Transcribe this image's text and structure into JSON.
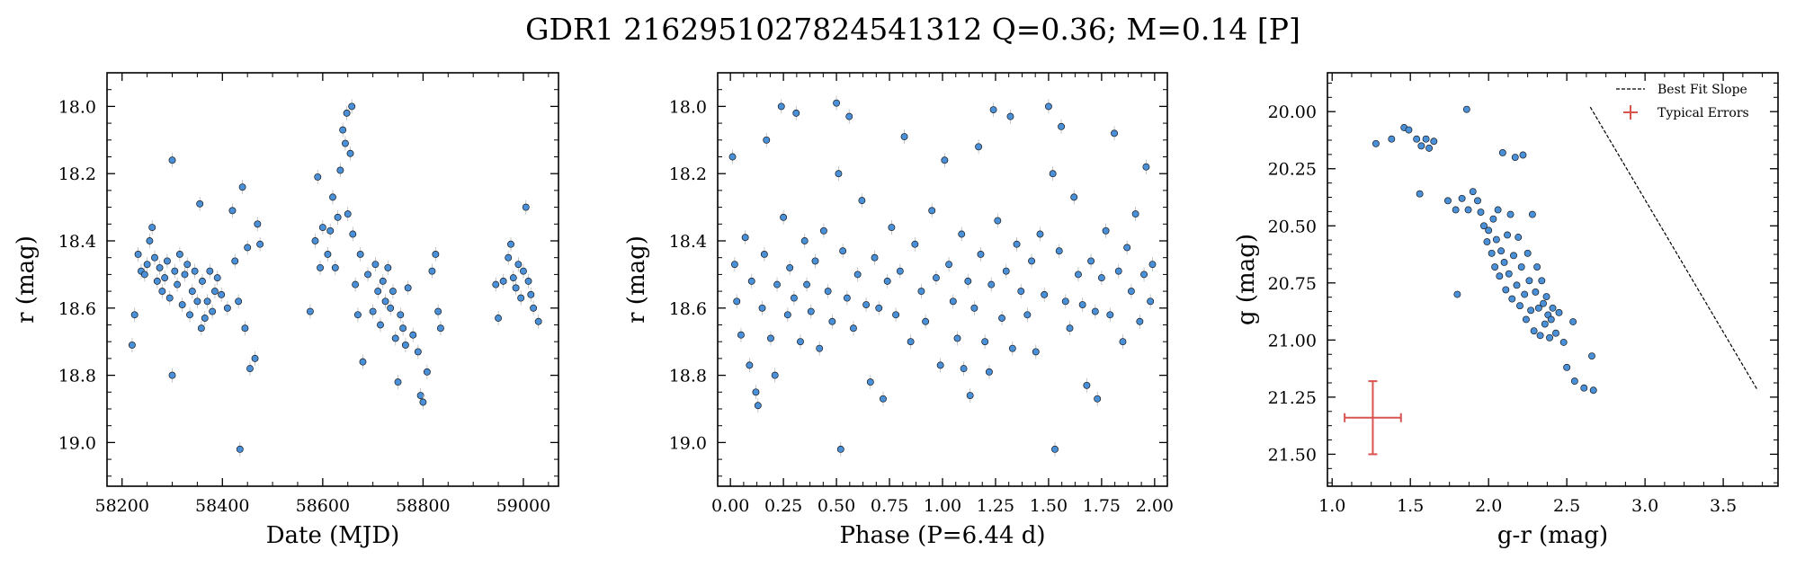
{
  "figure": {
    "title": "GDR1 2162951027824541312  Q=0.36; M=0.14 [P]"
  },
  "colors": {
    "point_fill": "#4a90d9",
    "point_edge": "#1a1a1a",
    "errorbar": "#b8b8b8",
    "typical_error": "#d9534f",
    "slope_line": "#000000"
  },
  "chart_data": [
    {
      "type": "scatter",
      "xlabel": "Date (MJD)",
      "ylabel": "r (mag)",
      "xlim": [
        58170,
        59070
      ],
      "ylim": [
        19.13,
        17.9
      ],
      "y_inverted": true,
      "xticks": [
        58200,
        58400,
        58600,
        58800,
        59000
      ],
      "xtick_labels": [
        "58200",
        "58400",
        "58600",
        "58800",
        "59000"
      ],
      "yticks": [
        18.0,
        18.2,
        18.4,
        18.6,
        18.8,
        19.0
      ],
      "ytick_labels": [
        "18.0",
        "18.2",
        "18.4",
        "18.6",
        "18.8",
        "19.0"
      ],
      "points": [
        [
          58220,
          18.71
        ],
        [
          58225,
          18.62
        ],
        [
          58232,
          18.44
        ],
        [
          58238,
          18.49
        ],
        [
          58245,
          18.5
        ],
        [
          58250,
          18.47
        ],
        [
          58255,
          18.4
        ],
        [
          58260,
          18.36
        ],
        [
          58265,
          18.45
        ],
        [
          58270,
          18.52
        ],
        [
          58275,
          18.48
        ],
        [
          58280,
          18.55
        ],
        [
          58285,
          18.51
        ],
        [
          58290,
          18.46
        ],
        [
          58295,
          18.57
        ],
        [
          58300,
          18.16
        ],
        [
          58300,
          18.8
        ],
        [
          58305,
          18.49
        ],
        [
          58310,
          18.53
        ],
        [
          58315,
          18.44
        ],
        [
          58320,
          18.59
        ],
        [
          58325,
          18.5
        ],
        [
          58330,
          18.47
        ],
        [
          58335,
          18.62
        ],
        [
          58340,
          18.55
        ],
        [
          58345,
          18.49
        ],
        [
          58350,
          18.58
        ],
        [
          58355,
          18.29
        ],
        [
          58358,
          18.66
        ],
        [
          58360,
          18.52
        ],
        [
          58365,
          18.63
        ],
        [
          58370,
          18.58
        ],
        [
          58375,
          18.49
        ],
        [
          58380,
          18.61
        ],
        [
          58385,
          18.55
        ],
        [
          58390,
          18.51
        ],
        [
          58398,
          18.56
        ],
        [
          58410,
          18.6
        ],
        [
          58420,
          18.31
        ],
        [
          58425,
          18.46
        ],
        [
          58432,
          18.58
        ],
        [
          58435,
          19.02
        ],
        [
          58440,
          18.24
        ],
        [
          58445,
          18.66
        ],
        [
          58450,
          18.42
        ],
        [
          58455,
          18.78
        ],
        [
          58465,
          18.75
        ],
        [
          58470,
          18.35
        ],
        [
          58475,
          18.41
        ],
        [
          58575,
          18.61
        ],
        [
          58585,
          18.4
        ],
        [
          58590,
          18.21
        ],
        [
          58595,
          18.48
        ],
        [
          58600,
          18.36
        ],
        [
          58610,
          18.44
        ],
        [
          58615,
          18.37
        ],
        [
          58620,
          18.27
        ],
        [
          58625,
          18.48
        ],
        [
          58630,
          18.33
        ],
        [
          58635,
          18.19
        ],
        [
          58640,
          18.07
        ],
        [
          58645,
          18.11
        ],
        [
          58648,
          18.02
        ],
        [
          58650,
          18.32
        ],
        [
          58655,
          18.14
        ],
        [
          58658,
          18.0
        ],
        [
          58660,
          18.38
        ],
        [
          58665,
          18.53
        ],
        [
          58670,
          18.62
        ],
        [
          58675,
          18.44
        ],
        [
          58680,
          18.76
        ],
        [
          58690,
          18.5
        ],
        [
          58700,
          18.61
        ],
        [
          58705,
          18.47
        ],
        [
          58710,
          18.55
        ],
        [
          58715,
          18.65
        ],
        [
          58720,
          18.52
        ],
        [
          58725,
          18.58
        ],
        [
          58730,
          18.48
        ],
        [
          58735,
          18.6
        ],
        [
          58740,
          18.55
        ],
        [
          58745,
          18.69
        ],
        [
          58750,
          18.82
        ],
        [
          58755,
          18.62
        ],
        [
          58760,
          18.66
        ],
        [
          58765,
          18.71
        ],
        [
          58770,
          18.54
        ],
        [
          58780,
          18.68
        ],
        [
          58790,
          18.73
        ],
        [
          58795,
          18.86
        ],
        [
          58800,
          18.88
        ],
        [
          58808,
          18.79
        ],
        [
          58818,
          18.49
        ],
        [
          58825,
          18.44
        ],
        [
          58830,
          18.61
        ],
        [
          58835,
          18.66
        ],
        [
          58945,
          18.53
        ],
        [
          58950,
          18.63
        ],
        [
          58960,
          18.52
        ],
        [
          58970,
          18.45
        ],
        [
          58975,
          18.41
        ],
        [
          58980,
          18.51
        ],
        [
          58985,
          18.54
        ],
        [
          58990,
          18.47
        ],
        [
          58995,
          18.57
        ],
        [
          59000,
          18.49
        ],
        [
          59005,
          18.3
        ],
        [
          59010,
          18.52
        ],
        [
          59015,
          18.56
        ],
        [
          59020,
          18.6
        ],
        [
          59030,
          18.64
        ]
      ]
    },
    {
      "type": "scatter",
      "xlabel": "Phase (P=6.44 d)",
      "ylabel": "r (mag)",
      "xlim": [
        -0.06,
        2.06
      ],
      "ylim": [
        19.13,
        17.9
      ],
      "y_inverted": true,
      "xticks": [
        0.0,
        0.25,
        0.5,
        0.75,
        1.0,
        1.25,
        1.5,
        1.75,
        2.0
      ],
      "xtick_labels": [
        "0.00",
        "0.25",
        "0.50",
        "0.75",
        "1.00",
        "1.25",
        "1.50",
        "1.75",
        "2.00"
      ],
      "yticks": [
        18.0,
        18.2,
        18.4,
        18.6,
        18.8,
        19.0
      ],
      "ytick_labels": [
        "18.0",
        "18.2",
        "18.4",
        "18.6",
        "18.8",
        "19.0"
      ],
      "points": [
        [
          0.01,
          18.15
        ],
        [
          0.02,
          18.47
        ],
        [
          0.03,
          18.58
        ],
        [
          0.05,
          18.68
        ],
        [
          0.07,
          18.39
        ],
        [
          0.09,
          18.77
        ],
        [
          0.1,
          18.52
        ],
        [
          0.12,
          18.85
        ],
        [
          0.13,
          18.89
        ],
        [
          0.15,
          18.6
        ],
        [
          0.16,
          18.44
        ],
        [
          0.17,
          18.1
        ],
        [
          0.19,
          18.69
        ],
        [
          0.21,
          18.8
        ],
        [
          0.22,
          18.53
        ],
        [
          0.24,
          18.0
        ],
        [
          0.25,
          18.33
        ],
        [
          0.27,
          18.62
        ],
        [
          0.28,
          18.48
        ],
        [
          0.3,
          18.57
        ],
        [
          0.31,
          18.02
        ],
        [
          0.33,
          18.7
        ],
        [
          0.35,
          18.4
        ],
        [
          0.36,
          18.53
        ],
        [
          0.38,
          18.61
        ],
        [
          0.4,
          18.46
        ],
        [
          0.42,
          18.72
        ],
        [
          0.44,
          18.37
        ],
        [
          0.46,
          18.55
        ],
        [
          0.48,
          18.64
        ],
        [
          0.5,
          17.99
        ],
        [
          0.51,
          18.2
        ],
        [
          0.52,
          19.02
        ],
        [
          0.53,
          18.43
        ],
        [
          0.55,
          18.57
        ],
        [
          0.56,
          18.03
        ],
        [
          0.58,
          18.66
        ],
        [
          0.6,
          18.5
        ],
        [
          0.62,
          18.28
        ],
        [
          0.64,
          18.59
        ],
        [
          0.66,
          18.82
        ],
        [
          0.68,
          18.45
        ],
        [
          0.7,
          18.6
        ],
        [
          0.72,
          18.87
        ],
        [
          0.74,
          18.52
        ],
        [
          0.76,
          18.36
        ],
        [
          0.78,
          18.62
        ],
        [
          0.8,
          18.49
        ],
        [
          0.82,
          18.09
        ],
        [
          0.85,
          18.7
        ],
        [
          0.87,
          18.41
        ],
        [
          0.9,
          18.55
        ],
        [
          0.92,
          18.64
        ],
        [
          0.95,
          18.31
        ],
        [
          0.97,
          18.51
        ],
        [
          0.99,
          18.77
        ],
        [
          1.01,
          18.16
        ],
        [
          1.03,
          18.47
        ],
        [
          1.05,
          18.58
        ],
        [
          1.07,
          18.69
        ],
        [
          1.09,
          18.38
        ],
        [
          1.1,
          18.78
        ],
        [
          1.12,
          18.52
        ],
        [
          1.13,
          18.86
        ],
        [
          1.15,
          18.6
        ],
        [
          1.17,
          18.12
        ],
        [
          1.18,
          18.44
        ],
        [
          1.2,
          18.7
        ],
        [
          1.22,
          18.79
        ],
        [
          1.23,
          18.53
        ],
        [
          1.24,
          18.01
        ],
        [
          1.26,
          18.34
        ],
        [
          1.28,
          18.63
        ],
        [
          1.3,
          18.49
        ],
        [
          1.32,
          18.03
        ],
        [
          1.33,
          18.72
        ],
        [
          1.35,
          18.41
        ],
        [
          1.37,
          18.55
        ],
        [
          1.4,
          18.62
        ],
        [
          1.42,
          18.46
        ],
        [
          1.44,
          18.73
        ],
        [
          1.46,
          18.38
        ],
        [
          1.48,
          18.56
        ],
        [
          1.5,
          18.0
        ],
        [
          1.52,
          18.2
        ],
        [
          1.53,
          19.02
        ],
        [
          1.55,
          18.43
        ],
        [
          1.56,
          18.06
        ],
        [
          1.58,
          18.58
        ],
        [
          1.6,
          18.66
        ],
        [
          1.62,
          18.27
        ],
        [
          1.64,
          18.5
        ],
        [
          1.66,
          18.59
        ],
        [
          1.68,
          18.83
        ],
        [
          1.7,
          18.46
        ],
        [
          1.72,
          18.61
        ],
        [
          1.73,
          18.87
        ],
        [
          1.75,
          18.51
        ],
        [
          1.77,
          18.37
        ],
        [
          1.79,
          18.62
        ],
        [
          1.81,
          18.08
        ],
        [
          1.83,
          18.49
        ],
        [
          1.85,
          18.7
        ],
        [
          1.87,
          18.42
        ],
        [
          1.89,
          18.55
        ],
        [
          1.91,
          18.32
        ],
        [
          1.93,
          18.64
        ],
        [
          1.95,
          18.5
        ],
        [
          1.96,
          18.18
        ],
        [
          1.98,
          18.58
        ],
        [
          1.99,
          18.47
        ]
      ]
    },
    {
      "type": "scatter",
      "xlabel": "g-r (mag)",
      "ylabel": "g (mag)",
      "xlim": [
        0.97,
        3.85
      ],
      "ylim": [
        21.64,
        19.83
      ],
      "y_inverted": true,
      "xticks": [
        1.0,
        1.5,
        2.0,
        2.5,
        3.0,
        3.5
      ],
      "xtick_labels": [
        "1.0",
        "1.5",
        "2.0",
        "2.5",
        "3.0",
        "3.5"
      ],
      "yticks": [
        20.0,
        20.25,
        20.5,
        20.75,
        21.0,
        21.25,
        21.5
      ],
      "ytick_labels": [
        "20.00",
        "20.25",
        "20.50",
        "20.75",
        "21.00",
        "21.25",
        "21.50"
      ],
      "legend": {
        "position": "top-right",
        "entries": [
          {
            "label": "Best Fit Slope",
            "style": "dashed-line"
          },
          {
            "label": "Typical Errors",
            "style": "errorbar"
          }
        ]
      },
      "best_fit_slope": {
        "x": [
          2.65,
          3.72
        ],
        "y": [
          19.98,
          21.22
        ]
      },
      "typical_error": {
        "x": 1.26,
        "y": 21.34,
        "xerr": 0.18,
        "yerr": 0.16
      },
      "points": [
        [
          1.28,
          20.14
        ],
        [
          1.38,
          20.12
        ],
        [
          1.46,
          20.07
        ],
        [
          1.49,
          20.08
        ],
        [
          1.54,
          20.12
        ],
        [
          1.57,
          20.15
        ],
        [
          1.6,
          20.12
        ],
        [
          1.62,
          20.16
        ],
        [
          1.56,
          20.36
        ],
        [
          1.65,
          20.13
        ],
        [
          1.86,
          19.99
        ],
        [
          1.74,
          20.39
        ],
        [
          1.79,
          20.43
        ],
        [
          1.8,
          20.8
        ],
        [
          1.83,
          20.38
        ],
        [
          1.87,
          20.43
        ],
        [
          1.9,
          20.35
        ],
        [
          1.93,
          20.39
        ],
        [
          1.95,
          20.44
        ],
        [
          1.97,
          20.5
        ],
        [
          1.99,
          20.57
        ],
        [
          2.0,
          20.52
        ],
        [
          2.02,
          20.62
        ],
        [
          2.03,
          20.47
        ],
        [
          2.04,
          20.68
        ],
        [
          2.05,
          20.56
        ],
        [
          2.06,
          20.43
        ],
        [
          2.07,
          20.72
        ],
        [
          2.08,
          20.61
        ],
        [
          2.09,
          20.18
        ],
        [
          2.1,
          20.66
        ],
        [
          2.11,
          20.78
        ],
        [
          2.12,
          20.54
        ],
        [
          2.13,
          20.71
        ],
        [
          2.14,
          20.45
        ],
        [
          2.15,
          20.82
        ],
        [
          2.16,
          20.63
        ],
        [
          2.17,
          20.2
        ],
        [
          2.18,
          20.76
        ],
        [
          2.19,
          20.55
        ],
        [
          2.2,
          20.85
        ],
        [
          2.21,
          20.68
        ],
        [
          2.22,
          20.19
        ],
        [
          2.23,
          20.8
        ],
        [
          2.24,
          20.91
        ],
        [
          2.25,
          20.62
        ],
        [
          2.26,
          20.74
        ],
        [
          2.27,
          20.87
        ],
        [
          2.28,
          20.45
        ],
        [
          2.29,
          20.96
        ],
        [
          2.3,
          20.79
        ],
        [
          2.31,
          20.68
        ],
        [
          2.32,
          20.86
        ],
        [
          2.33,
          20.98
        ],
        [
          2.34,
          20.74
        ],
        [
          2.35,
          20.84
        ],
        [
          2.36,
          20.93
        ],
        [
          2.37,
          20.81
        ],
        [
          2.38,
          20.89
        ],
        [
          2.39,
          20.99
        ],
        [
          2.4,
          20.91
        ],
        [
          2.41,
          20.86
        ],
        [
          2.43,
          20.97
        ],
        [
          2.45,
          20.88
        ],
        [
          2.48,
          21.01
        ],
        [
          2.5,
          21.12
        ],
        [
          2.54,
          20.92
        ],
        [
          2.55,
          21.18
        ],
        [
          2.61,
          21.21
        ],
        [
          2.66,
          21.07
        ],
        [
          2.67,
          21.22
        ]
      ]
    }
  ]
}
